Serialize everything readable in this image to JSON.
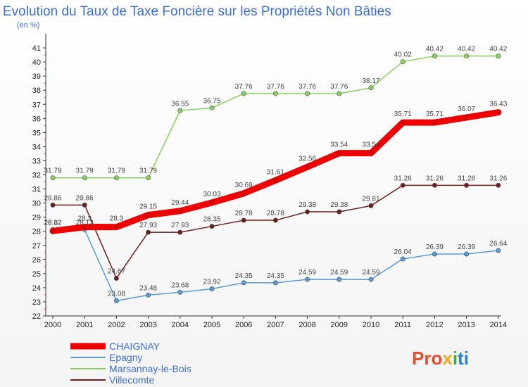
{
  "chart_data": {
    "type": "line",
    "title": "Evolution du Taux de Taxe Foncière sur les Propriétés Non Bâties",
    "subtitle": "(en %)",
    "x": [
      "2000",
      "2001",
      "2002",
      "2003",
      "2004",
      "2005",
      "2006",
      "2007",
      "2008",
      "2009",
      "2010",
      "2011",
      "2012",
      "2013",
      "2014"
    ],
    "ylim": [
      22,
      41
    ],
    "yticks": [
      22,
      23,
      24,
      25,
      26,
      27,
      28,
      29,
      30,
      31,
      32,
      33,
      34,
      35,
      36,
      37,
      38,
      39,
      40,
      41
    ],
    "grid": false,
    "legend_position": "bottom-left",
    "series": [
      {
        "name": "CHAIGNAY",
        "color": "#ee0000",
        "values": [
          28.02,
          28.3,
          28.3,
          29.15,
          29.44,
          30.03,
          30.69,
          31.61,
          32.56,
          33.54,
          33.54,
          35.71,
          35.71,
          36.07,
          36.43
        ],
        "labels": [
          "28.02",
          "28.3",
          "28.3",
          "29.15",
          "29.44",
          "30.03",
          "30.69",
          "31.61",
          "32.56",
          "33.54",
          "33.54",
          "35.71",
          "35.71",
          "36.07",
          "36.43"
        ]
      },
      {
        "name": "Epagny",
        "color": "#5b9bd5",
        "values": [
          28.12,
          28.12,
          23.08,
          23.48,
          23.68,
          23.92,
          24.35,
          24.35,
          24.59,
          24.59,
          24.59,
          26.04,
          26.39,
          26.39,
          26.64
        ],
        "labels": [
          "28.12",
          "28.12",
          "23.08",
          "23.48",
          "23.68",
          "23.92",
          "24.35",
          "24.35",
          "24.59",
          "24.59",
          "24.59",
          "26.04",
          "26.39",
          "26.39",
          "26.64"
        ]
      },
      {
        "name": "Marsannay-le-Bois",
        "color": "#88d060",
        "values": [
          31.79,
          31.79,
          31.79,
          31.79,
          36.55,
          36.75,
          37.76,
          37.76,
          37.76,
          37.76,
          38.17,
          40.02,
          40.42,
          40.42,
          40.42
        ],
        "labels": [
          "31.79",
          "31.79",
          "31.79",
          "31.79",
          "36.55",
          "36.75",
          "37.76",
          "37.76",
          "37.76",
          "37.76",
          "38.17",
          "40.02",
          "40.42",
          "40.42",
          "40.42"
        ]
      },
      {
        "name": "Villecomte",
        "color": "#6b1e1e",
        "values": [
          29.86,
          29.86,
          24.67,
          27.93,
          27.93,
          28.35,
          28.78,
          28.78,
          29.38,
          29.38,
          29.81,
          31.26,
          31.26,
          31.26,
          31.26
        ],
        "labels": [
          "29.86",
          "29.86",
          "24.67",
          "27.93",
          "27.93",
          "28.35",
          "28.78",
          "28.78",
          "29.38",
          "29.38",
          "29.81",
          "31.26",
          "31.26",
          "31.26",
          "31.26"
        ]
      }
    ]
  },
  "logo": {
    "text": "Proxiti",
    "colors": [
      "#e8492c",
      "#f2a51f",
      "#3fae49",
      "#2f80c8"
    ]
  }
}
